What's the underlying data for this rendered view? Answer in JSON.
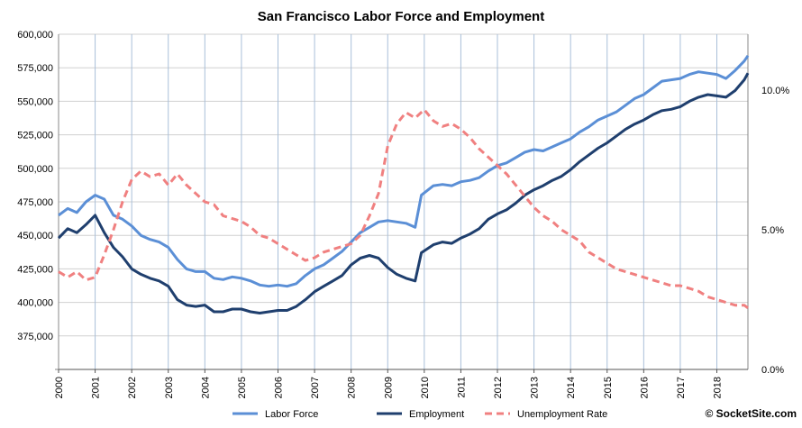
{
  "chart_data": {
    "type": "line",
    "title": "San Francisco Labor Force and Employment",
    "credit": "© SocketSite.com",
    "x_years": [
      "2000",
      "2001",
      "2002",
      "2003",
      "2004",
      "2005",
      "2006",
      "2007",
      "2008",
      "2009",
      "2010",
      "2011",
      "2012",
      "2013",
      "2014",
      "2015",
      "2016",
      "2017",
      "2018"
    ],
    "x_range": [
      2000,
      2018.85
    ],
    "left_axis": {
      "ticks": [
        "600,000",
        "575,000",
        "550,000",
        "525,000",
        "500,000",
        "475,000",
        "450,000",
        "425,000",
        "400,000",
        "375,000"
      ],
      "range": [
        350000,
        600000
      ]
    },
    "right_axis": {
      "ticks": [
        "10.0%",
        "5.0%",
        "0.0%"
      ],
      "range": [
        0,
        12
      ]
    },
    "series": [
      {
        "name": "Labor Force",
        "color": "#5b8fd6",
        "axis": "left",
        "points": [
          [
            2000.0,
            465000
          ],
          [
            2000.25,
            470000
          ],
          [
            2000.5,
            467000
          ],
          [
            2000.75,
            475000
          ],
          [
            2001.0,
            480000
          ],
          [
            2001.25,
            477000
          ],
          [
            2001.5,
            465000
          ],
          [
            2001.75,
            462000
          ],
          [
            2002.0,
            457000
          ],
          [
            2002.25,
            450000
          ],
          [
            2002.5,
            447000
          ],
          [
            2002.75,
            445000
          ],
          [
            2003.0,
            441000
          ],
          [
            2003.25,
            432000
          ],
          [
            2003.5,
            425000
          ],
          [
            2003.75,
            423000
          ],
          [
            2004.0,
            423000
          ],
          [
            2004.25,
            418000
          ],
          [
            2004.5,
            417000
          ],
          [
            2004.75,
            419000
          ],
          [
            2005.0,
            418000
          ],
          [
            2005.25,
            416000
          ],
          [
            2005.5,
            413000
          ],
          [
            2005.75,
            412000
          ],
          [
            2006.0,
            413000
          ],
          [
            2006.25,
            412000
          ],
          [
            2006.5,
            414000
          ],
          [
            2006.75,
            420000
          ],
          [
            2007.0,
            425000
          ],
          [
            2007.25,
            428000
          ],
          [
            2007.5,
            433000
          ],
          [
            2007.75,
            438000
          ],
          [
            2008.0,
            445000
          ],
          [
            2008.25,
            452000
          ],
          [
            2008.5,
            456000
          ],
          [
            2008.75,
            460000
          ],
          [
            2009.0,
            461000
          ],
          [
            2009.25,
            460000
          ],
          [
            2009.5,
            459000
          ],
          [
            2009.75,
            456000
          ],
          [
            2009.92,
            480000
          ],
          [
            2010.25,
            487000
          ],
          [
            2010.5,
            488000
          ],
          [
            2010.75,
            487000
          ],
          [
            2011.0,
            490000
          ],
          [
            2011.25,
            491000
          ],
          [
            2011.5,
            493000
          ],
          [
            2011.75,
            498000
          ],
          [
            2012.0,
            502000
          ],
          [
            2012.25,
            504000
          ],
          [
            2012.5,
            508000
          ],
          [
            2012.75,
            512000
          ],
          [
            2013.0,
            514000
          ],
          [
            2013.25,
            513000
          ],
          [
            2013.5,
            516000
          ],
          [
            2013.75,
            519000
          ],
          [
            2014.0,
            522000
          ],
          [
            2014.25,
            527000
          ],
          [
            2014.5,
            531000
          ],
          [
            2014.75,
            536000
          ],
          [
            2015.0,
            539000
          ],
          [
            2015.25,
            542000
          ],
          [
            2015.5,
            547000
          ],
          [
            2015.75,
            552000
          ],
          [
            2016.0,
            555000
          ],
          [
            2016.25,
            560000
          ],
          [
            2016.5,
            565000
          ],
          [
            2016.75,
            566000
          ],
          [
            2017.0,
            567000
          ],
          [
            2017.25,
            570000
          ],
          [
            2017.5,
            572000
          ],
          [
            2017.75,
            571000
          ],
          [
            2018.0,
            570000
          ],
          [
            2018.25,
            567000
          ],
          [
            2018.5,
            573000
          ],
          [
            2018.75,
            580000
          ],
          [
            2018.85,
            584000
          ]
        ]
      },
      {
        "name": "Employment",
        "color": "#1f3f6e",
        "axis": "left",
        "points": [
          [
            2000.0,
            448000
          ],
          [
            2000.25,
            455000
          ],
          [
            2000.5,
            452000
          ],
          [
            2000.75,
            458000
          ],
          [
            2001.0,
            465000
          ],
          [
            2001.25,
            452000
          ],
          [
            2001.5,
            441000
          ],
          [
            2001.75,
            434000
          ],
          [
            2002.0,
            425000
          ],
          [
            2002.25,
            421000
          ],
          [
            2002.5,
            418000
          ],
          [
            2002.75,
            416000
          ],
          [
            2003.0,
            412000
          ],
          [
            2003.25,
            402000
          ],
          [
            2003.5,
            398000
          ],
          [
            2003.75,
            397000
          ],
          [
            2004.0,
            398000
          ],
          [
            2004.25,
            393000
          ],
          [
            2004.5,
            393000
          ],
          [
            2004.75,
            395000
          ],
          [
            2005.0,
            395000
          ],
          [
            2005.25,
            393000
          ],
          [
            2005.5,
            392000
          ],
          [
            2005.75,
            393000
          ],
          [
            2006.0,
            394000
          ],
          [
            2006.25,
            394000
          ],
          [
            2006.5,
            397000
          ],
          [
            2006.75,
            402000
          ],
          [
            2007.0,
            408000
          ],
          [
            2007.25,
            412000
          ],
          [
            2007.5,
            416000
          ],
          [
            2007.75,
            420000
          ],
          [
            2008.0,
            428000
          ],
          [
            2008.25,
            433000
          ],
          [
            2008.5,
            435000
          ],
          [
            2008.75,
            433000
          ],
          [
            2009.0,
            426000
          ],
          [
            2009.25,
            421000
          ],
          [
            2009.5,
            418000
          ],
          [
            2009.75,
            416000
          ],
          [
            2009.92,
            437000
          ],
          [
            2010.25,
            443000
          ],
          [
            2010.5,
            445000
          ],
          [
            2010.75,
            444000
          ],
          [
            2011.0,
            448000
          ],
          [
            2011.25,
            451000
          ],
          [
            2011.5,
            455000
          ],
          [
            2011.75,
            462000
          ],
          [
            2012.0,
            466000
          ],
          [
            2012.25,
            469000
          ],
          [
            2012.5,
            474000
          ],
          [
            2012.75,
            480000
          ],
          [
            2013.0,
            484000
          ],
          [
            2013.25,
            487000
          ],
          [
            2013.5,
            491000
          ],
          [
            2013.75,
            494000
          ],
          [
            2014.0,
            499000
          ],
          [
            2014.25,
            505000
          ],
          [
            2014.5,
            510000
          ],
          [
            2014.75,
            515000
          ],
          [
            2015.0,
            519000
          ],
          [
            2015.25,
            524000
          ],
          [
            2015.5,
            529000
          ],
          [
            2015.75,
            533000
          ],
          [
            2016.0,
            536000
          ],
          [
            2016.25,
            540000
          ],
          [
            2016.5,
            543000
          ],
          [
            2016.75,
            544000
          ],
          [
            2017.0,
            546000
          ],
          [
            2017.25,
            550000
          ],
          [
            2017.5,
            553000
          ],
          [
            2017.75,
            555000
          ],
          [
            2018.0,
            554000
          ],
          [
            2018.25,
            553000
          ],
          [
            2018.5,
            558000
          ],
          [
            2018.75,
            566000
          ],
          [
            2018.85,
            571000
          ]
        ]
      },
      {
        "name": "Unemployment Rate",
        "color": "#f08080",
        "axis": "right",
        "dashed": true,
        "points": [
          [
            2000.0,
            3.5
          ],
          [
            2000.25,
            3.3
          ],
          [
            2000.5,
            3.5
          ],
          [
            2000.75,
            3.2
          ],
          [
            2001.0,
            3.3
          ],
          [
            2001.25,
            4.1
          ],
          [
            2001.5,
            5.0
          ],
          [
            2001.75,
            6.0
          ],
          [
            2002.0,
            6.8
          ],
          [
            2002.25,
            7.1
          ],
          [
            2002.5,
            6.9
          ],
          [
            2002.75,
            7.0
          ],
          [
            2003.0,
            6.6
          ],
          [
            2003.25,
            7.0
          ],
          [
            2003.5,
            6.6
          ],
          [
            2003.75,
            6.3
          ],
          [
            2004.0,
            6.0
          ],
          [
            2004.25,
            5.9
          ],
          [
            2004.5,
            5.5
          ],
          [
            2004.75,
            5.4
          ],
          [
            2005.0,
            5.3
          ],
          [
            2005.25,
            5.1
          ],
          [
            2005.5,
            4.8
          ],
          [
            2005.75,
            4.7
          ],
          [
            2006.0,
            4.5
          ],
          [
            2006.25,
            4.3
          ],
          [
            2006.5,
            4.1
          ],
          [
            2006.75,
            3.9
          ],
          [
            2007.0,
            4.0
          ],
          [
            2007.25,
            4.2
          ],
          [
            2007.5,
            4.3
          ],
          [
            2007.75,
            4.4
          ],
          [
            2008.0,
            4.5
          ],
          [
            2008.25,
            4.8
          ],
          [
            2008.5,
            5.5
          ],
          [
            2008.75,
            6.3
          ],
          [
            2009.0,
            8.0
          ],
          [
            2009.25,
            8.8
          ],
          [
            2009.5,
            9.2
          ],
          [
            2009.75,
            9.0
          ],
          [
            2010.0,
            9.3
          ],
          [
            2010.25,
            8.9
          ],
          [
            2010.5,
            8.7
          ],
          [
            2010.75,
            8.8
          ],
          [
            2011.0,
            8.6
          ],
          [
            2011.25,
            8.3
          ],
          [
            2011.5,
            7.9
          ],
          [
            2011.75,
            7.6
          ],
          [
            2012.0,
            7.3
          ],
          [
            2012.25,
            7.0
          ],
          [
            2012.5,
            6.6
          ],
          [
            2012.75,
            6.2
          ],
          [
            2013.0,
            5.8
          ],
          [
            2013.25,
            5.5
          ],
          [
            2013.5,
            5.3
          ],
          [
            2013.75,
            5.0
          ],
          [
            2014.0,
            4.8
          ],
          [
            2014.25,
            4.6
          ],
          [
            2014.5,
            4.2
          ],
          [
            2014.75,
            4.0
          ],
          [
            2015.0,
            3.8
          ],
          [
            2015.25,
            3.6
          ],
          [
            2015.5,
            3.5
          ],
          [
            2015.75,
            3.4
          ],
          [
            2016.0,
            3.3
          ],
          [
            2016.25,
            3.2
          ],
          [
            2016.5,
            3.1
          ],
          [
            2016.75,
            3.0
          ],
          [
            2017.0,
            3.0
          ],
          [
            2017.25,
            2.9
          ],
          [
            2017.5,
            2.8
          ],
          [
            2017.75,
            2.6
          ],
          [
            2018.0,
            2.5
          ],
          [
            2018.25,
            2.4
          ],
          [
            2018.5,
            2.3
          ],
          [
            2018.75,
            2.3
          ],
          [
            2018.85,
            2.2
          ]
        ]
      }
    ],
    "legend": [
      "Labor Force",
      "Employment",
      "Unemployment Rate"
    ],
    "legend_position": "bottom",
    "grid": true
  }
}
